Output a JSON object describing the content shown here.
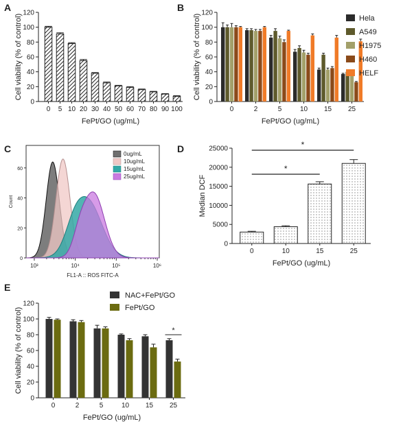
{
  "colors": {
    "bar_dark": "#333333",
    "hela": "#2b2b2b",
    "a549": "#5e5a2c",
    "h1975": "#a3a06a",
    "h460": "#8b4a1a",
    "helf": "#f07b28",
    "nac": "#333333",
    "fept_olive": "#6b6b10",
    "flow_0": "#6f6f6f",
    "flow_10": "#f0c8c6",
    "flow_15": "#33a8a6",
    "flow_25": "#c97ae0",
    "flow_overlap": "#5a64b4"
  },
  "chart_data": [
    {
      "panel": "A",
      "type": "bar",
      "xlabel": "FePt/GO (ug/mL)",
      "ylabel": "Cell viability (% of control)",
      "ylim": [
        0,
        120
      ],
      "yticks": [
        0,
        20,
        40,
        60,
        80,
        100,
        120
      ],
      "categories": [
        "0",
        "5",
        "10",
        "20",
        "30",
        "40",
        "50",
        "60",
        "70",
        "80",
        "90",
        "100"
      ],
      "values": [
        100,
        91,
        78,
        55,
        38,
        25,
        21,
        19,
        16,
        13,
        10,
        7
      ],
      "errors": [
        1.2,
        1.5,
        1.2,
        1.6,
        1.0,
        1.2,
        0.8,
        1.0,
        0.8,
        0.7,
        0.6,
        0.8
      ],
      "pattern": "hatched"
    },
    {
      "panel": "B",
      "type": "bar",
      "xlabel": "FePt/GO (ug/mL)",
      "ylabel": "Cell viability (% of control)",
      "ylim": [
        0,
        120
      ],
      "yticks": [
        0,
        20,
        40,
        60,
        80,
        100,
        120
      ],
      "categories": [
        "0",
        "2",
        "5",
        "10",
        "15",
        "25"
      ],
      "legend": "right",
      "series": [
        {
          "name": "Hela",
          "values": [
            100,
            96,
            86,
            67,
            43,
            37
          ],
          "errors": [
            6,
            2,
            3,
            3,
            2,
            1
          ]
        },
        {
          "name": "A549",
          "values": [
            100,
            96,
            95,
            72,
            63,
            40
          ],
          "errors": [
            3,
            2,
            3,
            3,
            2,
            1
          ]
        },
        {
          "name": "H1975",
          "values": [
            100,
            95,
            85,
            66,
            43,
            36
          ],
          "errors": [
            5,
            2,
            3,
            3,
            2,
            1
          ]
        },
        {
          "name": "H460",
          "values": [
            100,
            95,
            80,
            63,
            45,
            26
          ],
          "errors": [
            2,
            2,
            3,
            2,
            2,
            1
          ]
        },
        {
          "name": "HELF",
          "values": [
            100,
            100,
            95,
            89,
            86,
            81
          ],
          "errors": [
            1,
            1,
            1,
            2,
            3,
            3
          ]
        }
      ]
    },
    {
      "panel": "C",
      "type": "area",
      "xlabel": "FL1-A :: ROS FITC-A",
      "ylabel": "Count",
      "xscale": "log",
      "xticks": [
        "10³",
        "10⁴",
        "10⁵",
        "10⁶"
      ],
      "yticks": [
        0,
        20,
        40,
        60
      ],
      "ylim": [
        0,
        75
      ],
      "legend": "top-right",
      "series": [
        {
          "name": "0ug/mL",
          "peak_log10": 3.45,
          "height": 64,
          "width": 0.16
        },
        {
          "name": "10ug/mL",
          "peak_log10": 3.7,
          "height": 66,
          "width": 0.17
        },
        {
          "name": "15ug/mL",
          "peak_log10": 4.3,
          "height": 38,
          "width": 0.34
        },
        {
          "name": "25ug/mL",
          "peak_log10": 4.45,
          "height": 43,
          "width": 0.26
        }
      ]
    },
    {
      "panel": "D",
      "type": "bar",
      "xlabel": "FePt/GO (ug/mL)",
      "ylabel": "Median DCF",
      "ylim": [
        0,
        25000
      ],
      "yticks": [
        0,
        5000,
        10000,
        15000,
        20000,
        25000
      ],
      "categories": [
        "0",
        "10",
        "15",
        "25"
      ],
      "values": [
        3000,
        4400,
        15600,
        21000
      ],
      "errors": [
        200,
        250,
        600,
        1000
      ],
      "pattern": "dotted",
      "annotations": [
        {
          "from": "0",
          "to": "15",
          "label": "*"
        },
        {
          "from": "0",
          "to": "25",
          "label": "*"
        }
      ]
    },
    {
      "panel": "E",
      "type": "bar",
      "xlabel": "FePt/GO (ug/mL)",
      "ylabel": "Cell viability (% of control)",
      "ylim": [
        0,
        120
      ],
      "yticks": [
        0,
        20,
        40,
        60,
        80,
        100,
        120
      ],
      "categories": [
        "0",
        "2",
        "5",
        "10",
        "15",
        "25"
      ],
      "legend": "top-right",
      "series": [
        {
          "name": "NAC+FePt/GO",
          "values": [
            100,
            97,
            88,
            80,
            78,
            73
          ],
          "errors": [
            2,
            2,
            4,
            1,
            2,
            2
          ]
        },
        {
          "name": "FePt/GO",
          "values": [
            99,
            96,
            88,
            73,
            64,
            46
          ],
          "errors": [
            1,
            2,
            2,
            2,
            4,
            3
          ]
        }
      ],
      "annotations": [
        {
          "category": "25",
          "label": "*"
        }
      ]
    }
  ],
  "panels": {
    "A": "A",
    "B": "B",
    "C": "C",
    "D": "D",
    "E": "E"
  }
}
